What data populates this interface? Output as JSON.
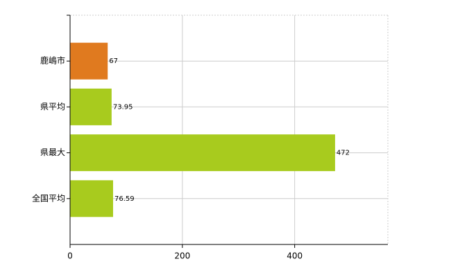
{
  "chart_data": {
    "type": "barh",
    "categories": [
      "鹿嶋市",
      "県平均",
      "県最大",
      "全国平均"
    ],
    "values": [
      67,
      73.95,
      472,
      76.59
    ],
    "colors": [
      "#e07a1f",
      "#a8cb1e",
      "#a8cb1e",
      "#a8cb1e"
    ],
    "xlim": [
      0,
      566
    ],
    "xticks": [
      0,
      200,
      400
    ],
    "grid": true
  }
}
